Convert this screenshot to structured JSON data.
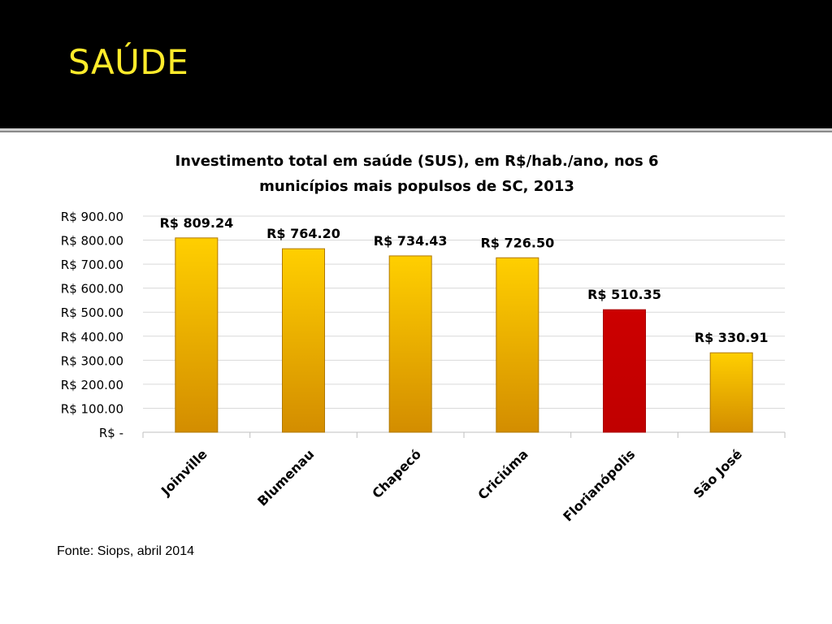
{
  "slide": {
    "title": "SAÚDE",
    "source": "Fonte: Siops, abril 2014"
  },
  "colors": {
    "header_bg": "#000000",
    "title": "#ffeb2b",
    "bar_gold_top": "#ffcc00",
    "bar_gold_bottom": "#d08c00",
    "bar_highlight": "#cc0000",
    "grid": "#d9d9d9"
  },
  "chart_data": {
    "type": "bar",
    "title_lines": [
      "Investimento total em saúde (SUS), em R$/hab./ano, nos 6",
      "municípios mais populsos de SC, 2013"
    ],
    "categories": [
      "Joinville",
      "Blumenau",
      "Chapecó",
      "Criciúma",
      "Florianópolis",
      "São José"
    ],
    "values": [
      809.24,
      764.2,
      734.43,
      726.5,
      510.35,
      330.91
    ],
    "data_labels": [
      "R$ 809.24",
      "R$ 764.20",
      "R$ 734.43",
      "R$ 726.50",
      "R$ 510.35",
      "R$ 330.91"
    ],
    "highlight_index": 4,
    "ylim": [
      0,
      900
    ],
    "y_ticks": [
      0,
      100,
      200,
      300,
      400,
      500,
      600,
      700,
      800,
      900
    ],
    "y_tick_labels": [
      "R$ -",
      "R$ 100.00",
      "R$ 200.00",
      "R$ 300.00",
      "R$ 400.00",
      "R$ 500.00",
      "R$ 600.00",
      "R$ 700.00",
      "R$ 800.00",
      "R$ 900.00"
    ],
    "xlabel": "",
    "ylabel": "",
    "grid": true,
    "legend": "none"
  }
}
